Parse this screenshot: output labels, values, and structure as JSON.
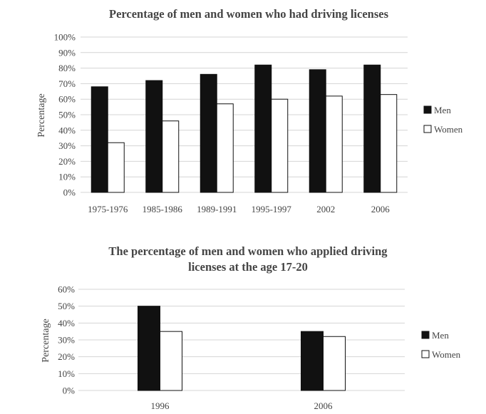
{
  "chart_data": [
    {
      "type": "bar",
      "title": "Percentage of men and women who had  driving licenses",
      "ylabel": "Percentage",
      "xlabel": "",
      "categories": [
        "1975-1976",
        "1985-1986",
        "1989-1991",
        "1995-1997",
        "2002",
        "2006"
      ],
      "series": [
        {
          "name": "Men",
          "values": [
            68,
            72,
            76,
            82,
            79,
            82
          ],
          "color": "#111111"
        },
        {
          "name": "Women",
          "values": [
            32,
            46,
            57,
            60,
            62,
            63
          ],
          "color": "#ffffff"
        }
      ],
      "ylim": [
        0,
        100
      ],
      "yticks": [
        "0%",
        "10%",
        "20%",
        "30%",
        "40%",
        "50%",
        "60%",
        "70%",
        "80%",
        "90%",
        "100%"
      ],
      "grid": true,
      "legend_position": "right"
    },
    {
      "type": "bar",
      "title": [
        "The percentage of men and women who applied driving",
        "licenses at the age 17-20"
      ],
      "ylabel": "Percentage",
      "xlabel": "",
      "categories": [
        "1996",
        "2006"
      ],
      "series": [
        {
          "name": "Men",
          "values": [
            50,
            35
          ],
          "color": "#111111"
        },
        {
          "name": "Women",
          "values": [
            35,
            32
          ],
          "color": "#ffffff"
        }
      ],
      "ylim": [
        0,
        60
      ],
      "yticks": [
        "0%",
        "10%",
        "20%",
        "30%",
        "40%",
        "50%",
        "60%"
      ],
      "grid": true,
      "legend_position": "right"
    }
  ]
}
